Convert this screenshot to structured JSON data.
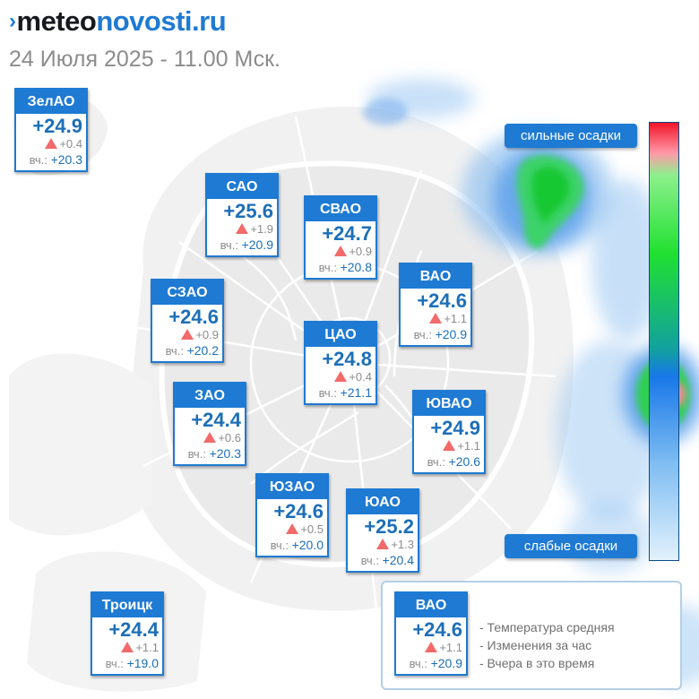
{
  "brand": {
    "mark": "›",
    "part1": "meteo",
    "part2": "novosti.ru"
  },
  "date_line": "24 Июля 2025 - 11.00 Мск.",
  "yesterday_prefix": "вч.:",
  "colors": {
    "card_blue": "#1e7ad3",
    "rise_arrow": "#f26a6a",
    "temp_text": "#1c6fb8"
  },
  "districts": [
    {
      "name": "ЗелАО",
      "temp": "+24.9",
      "change": "+0.4",
      "yesterday": "+20.3"
    },
    {
      "name": "САО",
      "temp": "+25.6",
      "change": "+1.9",
      "yesterday": "+20.9"
    },
    {
      "name": "СВАО",
      "temp": "+24.7",
      "change": "+0.9",
      "yesterday": "+20.8"
    },
    {
      "name": "ВАО",
      "temp": "+24.6",
      "change": "+1.1",
      "yesterday": "+20.9"
    },
    {
      "name": "СЗАО",
      "temp": "+24.6",
      "change": "+0.9",
      "yesterday": "+20.2"
    },
    {
      "name": "ЦАО",
      "temp": "+24.8",
      "change": "+0.4",
      "yesterday": "+21.1"
    },
    {
      "name": "ЗАО",
      "temp": "+24.4",
      "change": "+0.6",
      "yesterday": "+20.3"
    },
    {
      "name": "ЮВАО",
      "temp": "+24.9",
      "change": "+1.1",
      "yesterday": "+20.6"
    },
    {
      "name": "ЮЗАО",
      "temp": "+24.6",
      "change": "+0.5",
      "yesterday": "+20.0"
    },
    {
      "name": "ЮАО",
      "temp": "+25.2",
      "change": "+1.3",
      "yesterday": "+20.4"
    },
    {
      "name": "Троицк",
      "temp": "+24.4",
      "change": "+1.1",
      "yesterday": "+19.0"
    }
  ],
  "precip_scale": {
    "top_label": "сильные осадки",
    "bottom_label": "слабые осадки"
  },
  "legend": {
    "sample": {
      "name": "ВАО",
      "temp": "+24.6",
      "change": "+1.1",
      "yesterday": "+20.9"
    },
    "lines": [
      "- Температура средняя",
      "- Изменения за час",
      "- Вчера в это время"
    ]
  }
}
